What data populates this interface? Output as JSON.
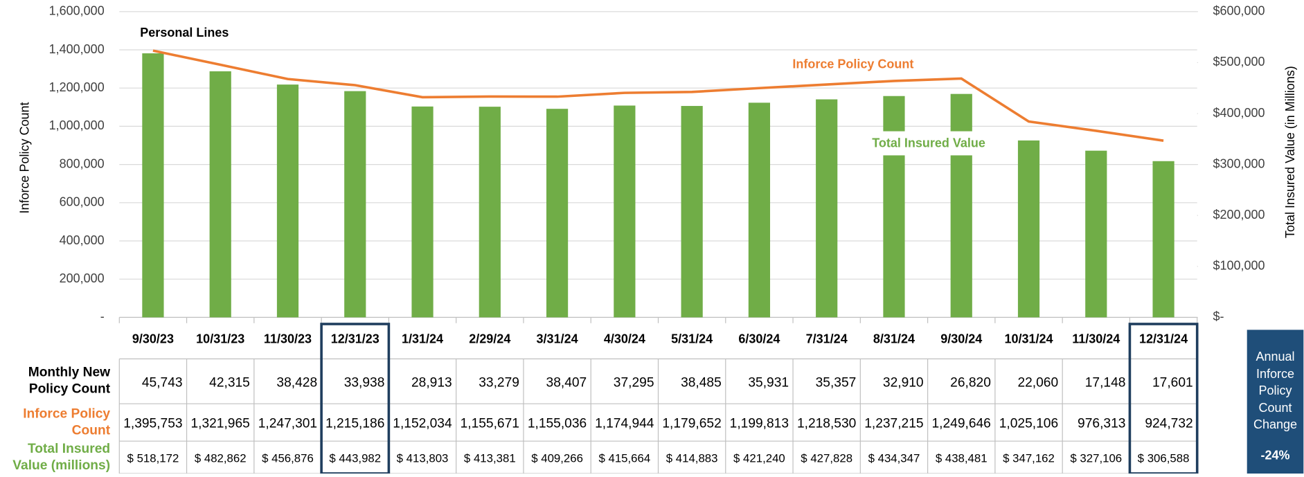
{
  "chart_data": {
    "type": "bar_line",
    "title": "Personal Lines",
    "categories": [
      "9/30/23",
      "10/31/23",
      "11/30/23",
      "12/31/23",
      "1/31/24",
      "2/29/24",
      "3/31/24",
      "4/30/24",
      "5/31/24",
      "6/30/24",
      "7/31/24",
      "8/31/24",
      "9/30/24",
      "10/31/24",
      "11/30/24",
      "12/31/24"
    ],
    "ylabel": "Inforce Policy Count",
    "y2label": "Total Insured Value (in Millions)",
    "ylim": [
      0,
      1600000
    ],
    "yticks": [
      {
        "value": 0,
        "label": "-"
      },
      {
        "value": 200000,
        "label": "200,000"
      },
      {
        "value": 400000,
        "label": "400,000"
      },
      {
        "value": 600000,
        "label": "600,000"
      },
      {
        "value": 800000,
        "label": "800,000"
      },
      {
        "value": 1000000,
        "label": "1,000,000"
      },
      {
        "value": 1200000,
        "label": "1,200,000"
      },
      {
        "value": 1400000,
        "label": "1,400,000"
      },
      {
        "value": 1600000,
        "label": "1,600,000"
      }
    ],
    "y2lim": [
      0,
      600000
    ],
    "y2ticks": [
      {
        "value": 0,
        "label": "$-"
      },
      {
        "value": 100000,
        "label": "$100,000"
      },
      {
        "value": 200000,
        "label": "$200,000"
      },
      {
        "value": 300000,
        "label": "$300,000"
      },
      {
        "value": 400000,
        "label": "$400,000"
      },
      {
        "value": 500000,
        "label": "$500,000"
      },
      {
        "value": 600000,
        "label": "$600,000"
      }
    ],
    "grid": true,
    "series": [
      {
        "name": "Inforce Policy Count",
        "type": "line",
        "color": "#ed7d31",
        "values": [
          1395753,
          1321965,
          1247301,
          1215186,
          1152034,
          1155671,
          1155036,
          1174944,
          1179652,
          1199813,
          1218530,
          1237215,
          1249646,
          1025106,
          976313,
          924732
        ],
        "value_labels": [
          "1,395,753",
          "1,321,965",
          "1,247,301",
          "1,215,186",
          "1,152,034",
          "1,155,671",
          "1,155,036",
          "1,174,944",
          "1,179,652",
          "1,199,813",
          "1,218,530",
          "1,237,215",
          "1,249,646",
          "1,025,106",
          "976,313",
          "924,732"
        ]
      },
      {
        "name": "Total Insured Value",
        "type": "bar",
        "axis": "y2",
        "color": "#70ad47",
        "values": [
          518172,
          482862,
          456876,
          443982,
          413803,
          413381,
          409266,
          415664,
          414883,
          421240,
          427828,
          434347,
          438481,
          347162,
          327106,
          306588
        ],
        "value_labels": [
          "$ 518,172",
          "$ 482,862",
          "$ 456,876",
          "$ 443,982",
          "$ 413,803",
          "$ 413,381",
          "$ 409,266",
          "$ 415,664",
          "$ 414,883",
          "$ 421,240",
          "$ 427,828",
          "$ 434,347",
          "$ 438,481",
          "$ 347,162",
          "$ 327,106",
          "$ 306,588"
        ]
      }
    ]
  },
  "table": {
    "rows": [
      {
        "label": "Monthly New Policy Count",
        "values": [
          "45,743",
          "42,315",
          "38,428",
          "33,938",
          "28,913",
          "33,279",
          "38,407",
          "37,295",
          "38,485",
          "35,931",
          "35,357",
          "32,910",
          "26,820",
          "22,060",
          "17,148",
          "17,601"
        ]
      },
      {
        "label": "Inforce Policy Count"
      },
      {
        "label": "Total Insured Value (millions)"
      }
    ]
  },
  "side": {
    "label": "Annual Inforce Policy Count Change",
    "value": "-24%"
  }
}
